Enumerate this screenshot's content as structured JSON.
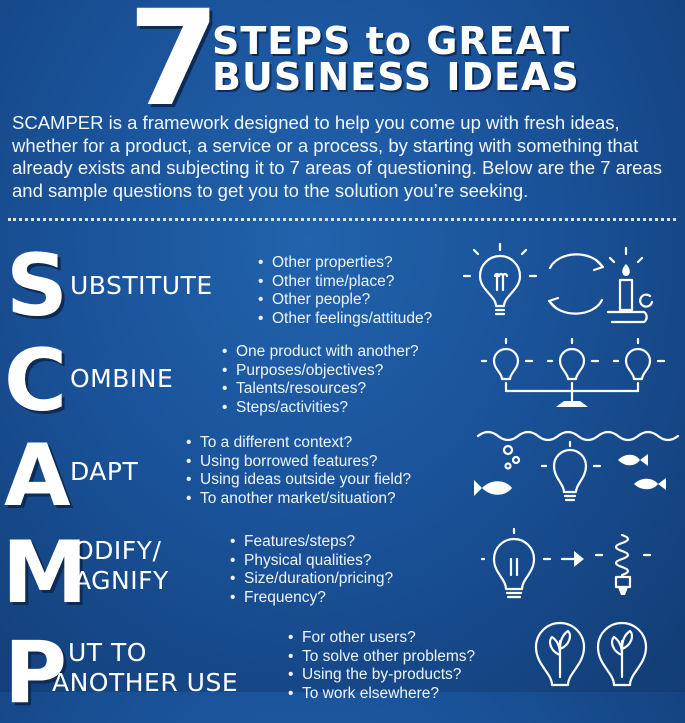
{
  "title": {
    "number": "7",
    "line1": "STEPS to GREAT",
    "line2": "BUSINESS IDEAS"
  },
  "intro": "SCAMPER is a framework designed to help you come up with fresh ideas, whether for a product, a service or a process, by starting with something that already exists and subjecting it to 7 areas of questioning. Below are the 7 areas and sample questions to get you to the solution you’re seeking.",
  "sections": [
    {
      "letter": "S",
      "word": "UBSTITUTE",
      "questions": [
        "Other properties?",
        "Other time/place?",
        "Other people?",
        "Other feelings/attitude?"
      ],
      "illustration": "lightbulb-swap-candle"
    },
    {
      "letter": "C",
      "word": "OMBINE",
      "questions": [
        "One product with another?",
        "Purposes/objectives?",
        "Talents/resources?",
        "Steps/activities?"
      ],
      "illustration": "three-lightbulbs-connected"
    },
    {
      "letter": "A",
      "word": "DAPT",
      "questions": [
        "To a different context?",
        "Using borrowed features?",
        "Using ideas outside your field?",
        "To another market/situation?"
      ],
      "illustration": "lightbulb-underwater-fish"
    },
    {
      "letter": "M",
      "word_line1": "ODIFY/",
      "word_line2": "AGNIFY",
      "questions": [
        "Features/steps?",
        "Physical qualities?",
        "Size/duration/pricing?",
        "Frequency?"
      ],
      "illustration": "lightbulb-to-cfl"
    },
    {
      "letter": "P",
      "word_line1": "UT TO",
      "word_line2": "ANOTHER USE",
      "questions": [
        "For other users?",
        "To solve other problems?",
        "Using the by-products?",
        "To work elsewhere?"
      ],
      "illustration": "lightbulbs-with-plants"
    }
  ]
}
